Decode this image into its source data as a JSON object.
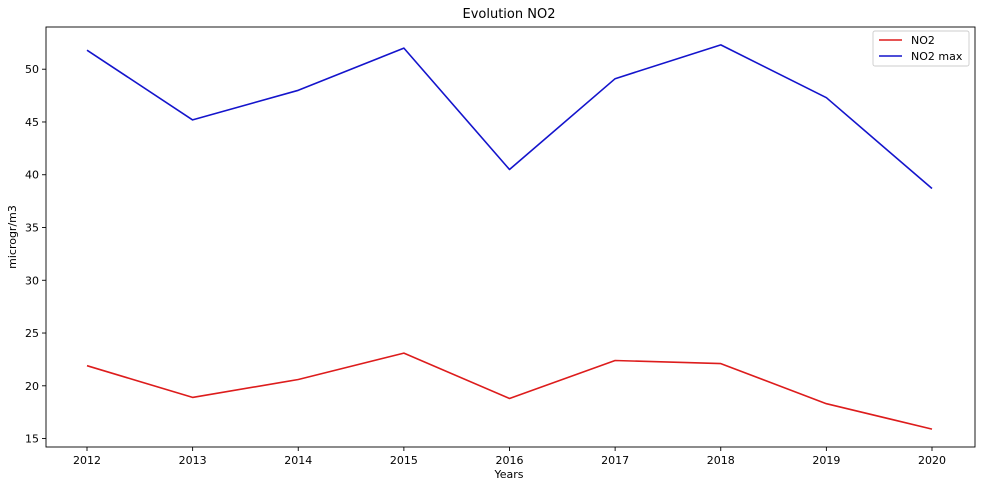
{
  "chart_data": {
    "type": "line",
    "title": "Evolution NO2",
    "xlabel": "Years",
    "ylabel": "microgr/m3",
    "x": [
      "2012",
      "2013",
      "2014",
      "2015",
      "2016",
      "2017",
      "2018",
      "2019",
      "2020"
    ],
    "ylim": [
      14.2,
      54.0
    ],
    "yticks": [
      "15",
      "20",
      "25",
      "30",
      "35",
      "40",
      "45",
      "50"
    ],
    "grid": false,
    "legend_position": "top-right",
    "series": [
      {
        "name": "NO2",
        "color": "#dd1c1c",
        "values": [
          21.9,
          18.9,
          20.6,
          23.1,
          18.8,
          22.4,
          22.1,
          18.3,
          15.9
        ]
      },
      {
        "name": "NO2 max",
        "color": "#1414cc",
        "values": [
          51.8,
          45.2,
          48.0,
          52.0,
          40.5,
          49.1,
          52.3,
          47.3,
          38.7
        ]
      }
    ]
  }
}
